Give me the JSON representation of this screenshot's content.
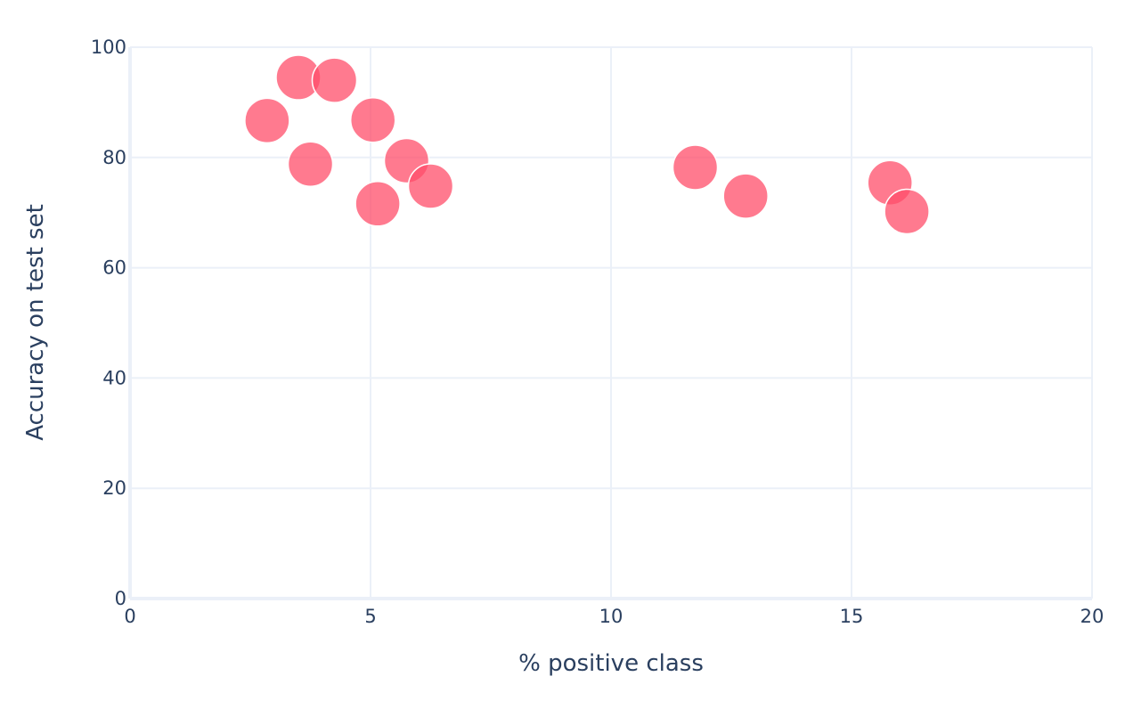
{
  "chart_data": {
    "type": "scatter",
    "title": "",
    "xlabel": "% positive class",
    "ylabel": "Accuracy on test set",
    "xlim": [
      0,
      20
    ],
    "ylim": [
      0,
      100
    ],
    "xticks": [
      0,
      5,
      10,
      15,
      20
    ],
    "yticks": [
      0,
      20,
      40,
      60,
      80,
      100
    ],
    "xtick_labels": [
      "0",
      "5",
      "10",
      "15",
      "20"
    ],
    "ytick_labels": [
      "0",
      "20",
      "40",
      "60",
      "80",
      "100"
    ],
    "grid": true,
    "legend": "none",
    "marker_color": "#ff4d6a",
    "marker_opacity": 0.75,
    "series": [
      {
        "points": [
          {
            "x": 2.85,
            "y": 86.7
          },
          {
            "x": 3.5,
            "y": 94.5
          },
          {
            "x": 3.75,
            "y": 78.8
          },
          {
            "x": 4.25,
            "y": 94.0
          },
          {
            "x": 5.05,
            "y": 86.8
          },
          {
            "x": 5.15,
            "y": 71.6
          },
          {
            "x": 5.75,
            "y": 79.4
          },
          {
            "x": 6.25,
            "y": 74.8
          },
          {
            "x": 11.75,
            "y": 78.2
          },
          {
            "x": 12.8,
            "y": 73.0
          },
          {
            "x": 15.8,
            "y": 75.4
          },
          {
            "x": 16.15,
            "y": 70.2
          }
        ]
      }
    ]
  }
}
